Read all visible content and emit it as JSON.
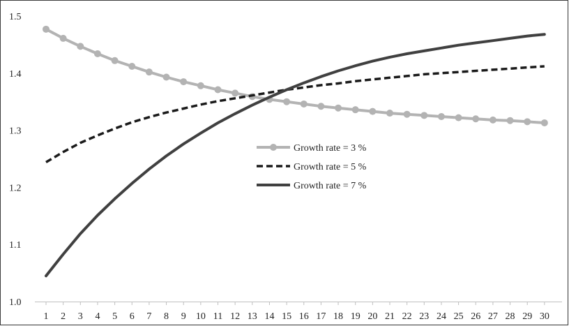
{
  "chart_data": {
    "type": "line",
    "title": "",
    "xlabel": "",
    "ylabel": "",
    "x": [
      1,
      2,
      3,
      4,
      5,
      6,
      7,
      8,
      9,
      10,
      11,
      12,
      13,
      14,
      15,
      16,
      17,
      18,
      19,
      20,
      21,
      22,
      23,
      24,
      25,
      26,
      27,
      28,
      29,
      30
    ],
    "ylim": [
      1.0,
      1.5
    ],
    "yticks": [
      "1.0",
      "1.1",
      "1.2",
      "1.3",
      "1.4",
      "1.5"
    ],
    "xticks": [
      "1",
      "2",
      "3",
      "4",
      "5",
      "6",
      "7",
      "8",
      "9",
      "10",
      "11",
      "12",
      "13",
      "14",
      "15",
      "16",
      "17",
      "18",
      "19",
      "20",
      "21",
      "22",
      "23",
      "24",
      "25",
      "26",
      "27",
      "28",
      "29",
      "30"
    ],
    "grid": false,
    "legend_position": "center-right",
    "series": [
      {
        "name": "Growth rate = 3 %",
        "color": "#b3b3b3",
        "style": "solid-markers",
        "values": [
          1.477,
          1.461,
          1.447,
          1.434,
          1.422,
          1.412,
          1.402,
          1.393,
          1.385,
          1.378,
          1.371,
          1.365,
          1.359,
          1.354,
          1.35,
          1.346,
          1.342,
          1.339,
          1.336,
          1.333,
          1.33,
          1.328,
          1.326,
          1.324,
          1.322,
          1.32,
          1.318,
          1.317,
          1.315,
          1.313
        ]
      },
      {
        "name": "Growth rate = 5 %",
        "color": "#1a1a1a",
        "style": "dashed",
        "values": [
          1.244,
          1.262,
          1.278,
          1.291,
          1.303,
          1.314,
          1.323,
          1.331,
          1.338,
          1.345,
          1.351,
          1.356,
          1.361,
          1.366,
          1.371,
          1.375,
          1.379,
          1.382,
          1.386,
          1.389,
          1.392,
          1.395,
          1.398,
          1.4,
          1.402,
          1.404,
          1.406,
          1.408,
          1.41,
          1.412
        ]
      },
      {
        "name": "Growth rate = 7 %",
        "color": "#404040",
        "style": "solid",
        "values": [
          1.045,
          1.083,
          1.119,
          1.151,
          1.18,
          1.207,
          1.232,
          1.255,
          1.276,
          1.295,
          1.313,
          1.329,
          1.344,
          1.358,
          1.371,
          1.383,
          1.394,
          1.404,
          1.413,
          1.421,
          1.428,
          1.434,
          1.439,
          1.444,
          1.449,
          1.453,
          1.457,
          1.461,
          1.465,
          1.468
        ]
      }
    ]
  }
}
